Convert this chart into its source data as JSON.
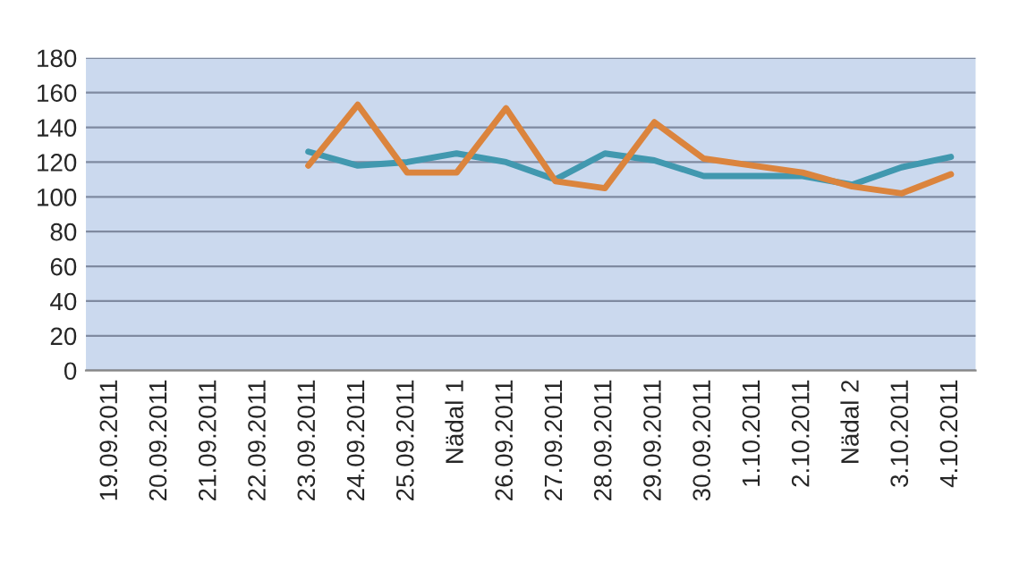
{
  "chart_data": {
    "type": "line",
    "categories": [
      "19.09.2011",
      "20.09.2011",
      "21.09.2011",
      "22.09.2011",
      "23.09.2011",
      "24.09.2011",
      "25.09.2011",
      "Nädal 1",
      "26.09.2011",
      "27.09.2011",
      "28.09.2011",
      "29.09.2011",
      "30.09.2011",
      "1.10.2011",
      "2.10.2011",
      "Nädal 2",
      "3.10.2011",
      "4.10.2011"
    ],
    "series": [
      {
        "color": "#4198af",
        "values": [
          null,
          null,
          null,
          null,
          126,
          118,
          120,
          125,
          120,
          110,
          125,
          121,
          112,
          112,
          112,
          107,
          117,
          123
        ]
      },
      {
        "color": "#db843d",
        "values": [
          null,
          null,
          null,
          null,
          118,
          153,
          114,
          114,
          151,
          109,
          105,
          143,
          122,
          118,
          114,
          106,
          102,
          113
        ]
      }
    ],
    "ylim": [
      0,
      180
    ],
    "yticks": [
      0,
      20,
      40,
      60,
      80,
      100,
      120,
      140,
      160,
      180
    ],
    "grid": "y",
    "marker": "none",
    "line_style": "solid",
    "legend": false
  }
}
